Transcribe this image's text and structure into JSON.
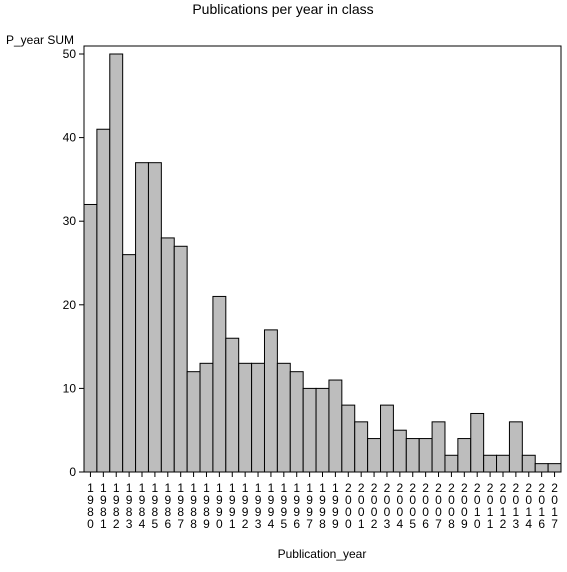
{
  "chart_data": {
    "type": "bar",
    "title": "Publications per year in class",
    "xlabel": "Publication_year",
    "ylabel": "P_year SUM",
    "ylim": [
      0,
      50
    ],
    "yticks": [
      0,
      10,
      20,
      30,
      40,
      50
    ],
    "grid": false,
    "categories": [
      "1980",
      "1981",
      "1982",
      "1983",
      "1984",
      "1985",
      "1986",
      "1987",
      "1988",
      "1989",
      "1990",
      "1991",
      "1992",
      "1993",
      "1994",
      "1995",
      "1996",
      "1997",
      "1998",
      "1999",
      "2000",
      "2001",
      "2002",
      "2003",
      "2004",
      "2005",
      "2006",
      "2007",
      "2008",
      "2009",
      "2010",
      "2011",
      "2012",
      "2013",
      "2014",
      "2016",
      "2017"
    ],
    "values": [
      32,
      41,
      50,
      26,
      37,
      37,
      28,
      27,
      12,
      13,
      21,
      16,
      13,
      13,
      17,
      13,
      12,
      10,
      10,
      11,
      8,
      6,
      4,
      8,
      5,
      4,
      4,
      6,
      2,
      4,
      7,
      2,
      2,
      6,
      2,
      1,
      1
    ],
    "colors": {
      "bar_fill": "#bdbdbd",
      "bar_stroke": "#000000",
      "background": "#ffffff"
    }
  }
}
